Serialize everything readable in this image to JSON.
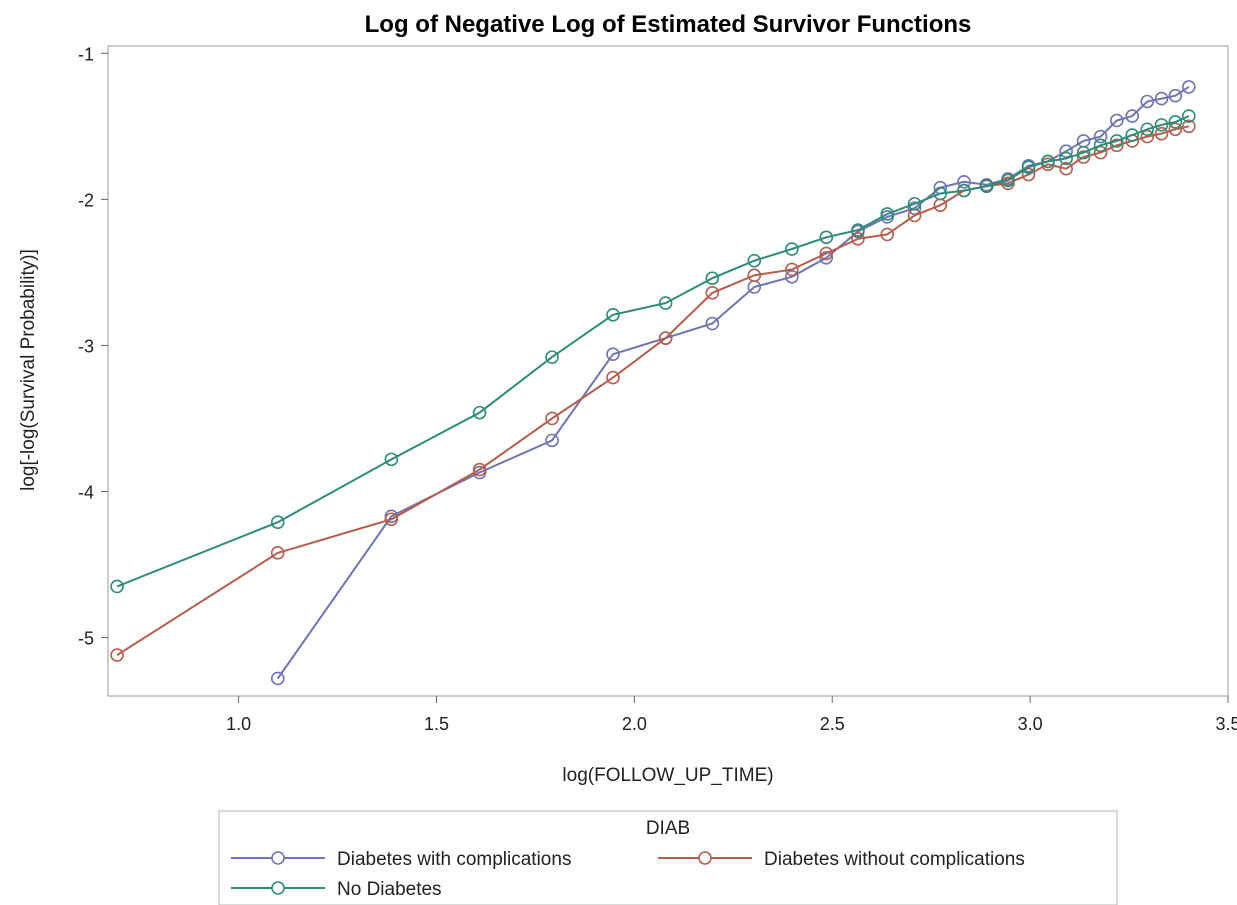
{
  "chart_data": {
    "type": "line",
    "title": "Log of Negative Log of Estimated Survivor Functions",
    "xlabel": "log(FOLLOW_UP_TIME)",
    "ylabel": "log[-log(Survival Probability)]",
    "xlim": [
      0.67,
      3.5
    ],
    "ylim": [
      -5.4,
      -0.95
    ],
    "x_ticks": [
      1.0,
      1.5,
      2.0,
      2.5,
      3.0,
      3.5
    ],
    "x_tick_labels": [
      "1.0",
      "1.5",
      "2.0",
      "2.5",
      "3.0",
      "3.5"
    ],
    "y_ticks": [
      -1,
      -2,
      -3,
      -4,
      -5
    ],
    "y_tick_labels": [
      "-1",
      "-2",
      "-3",
      "-4",
      "-5"
    ],
    "grid": false,
    "marker": "open-circle",
    "legend": {
      "title": "DIAB",
      "placement": "bottom"
    },
    "series": [
      {
        "name": "Diabetes with complications",
        "color": "#6f74b3",
        "points": [
          [
            1.099,
            -5.28
          ],
          [
            1.386,
            -4.17
          ],
          [
            1.609,
            -3.87
          ],
          [
            1.792,
            -3.65
          ],
          [
            1.946,
            -3.06
          ],
          [
            2.079,
            -2.95
          ],
          [
            2.197,
            -2.85
          ],
          [
            2.303,
            -2.6
          ],
          [
            2.398,
            -2.53
          ],
          [
            2.485,
            -2.4
          ],
          [
            2.565,
            -2.22
          ],
          [
            2.639,
            -2.12
          ],
          [
            2.708,
            -2.06
          ],
          [
            2.773,
            -1.92
          ],
          [
            2.833,
            -1.88
          ],
          [
            2.89,
            -1.9
          ],
          [
            2.944,
            -1.86
          ],
          [
            2.996,
            -1.77
          ],
          [
            3.045,
            -1.74
          ],
          [
            3.091,
            -1.67
          ],
          [
            3.135,
            -1.6
          ],
          [
            3.178,
            -1.57
          ],
          [
            3.219,
            -1.46
          ],
          [
            3.258,
            -1.43
          ],
          [
            3.296,
            -1.33
          ],
          [
            3.332,
            -1.31
          ],
          [
            3.367,
            -1.29
          ],
          [
            3.401,
            -1.23
          ]
        ]
      },
      {
        "name": "Diabetes without complications",
        "color": "#b65e4e",
        "points": [
          [
            0.693,
            -5.12
          ],
          [
            1.099,
            -4.42
          ],
          [
            1.386,
            -4.19
          ],
          [
            1.609,
            -3.85
          ],
          [
            1.792,
            -3.5
          ],
          [
            1.946,
            -3.22
          ],
          [
            2.079,
            -2.95
          ],
          [
            2.197,
            -2.64
          ],
          [
            2.303,
            -2.52
          ],
          [
            2.398,
            -2.48
          ],
          [
            2.485,
            -2.37
          ],
          [
            2.565,
            -2.27
          ],
          [
            2.639,
            -2.24
          ],
          [
            2.708,
            -2.11
          ],
          [
            2.773,
            -2.04
          ],
          [
            2.833,
            -1.94
          ],
          [
            2.89,
            -1.91
          ],
          [
            2.944,
            -1.89
          ],
          [
            2.996,
            -1.83
          ],
          [
            3.045,
            -1.76
          ],
          [
            3.091,
            -1.79
          ],
          [
            3.135,
            -1.71
          ],
          [
            3.178,
            -1.68
          ],
          [
            3.219,
            -1.63
          ],
          [
            3.258,
            -1.6
          ],
          [
            3.296,
            -1.57
          ],
          [
            3.332,
            -1.55
          ],
          [
            3.367,
            -1.52
          ],
          [
            3.401,
            -1.5
          ]
        ]
      },
      {
        "name": "No Diabetes",
        "color": "#2e8c79",
        "points": [
          [
            0.693,
            -4.65
          ],
          [
            1.099,
            -4.21
          ],
          [
            1.386,
            -3.78
          ],
          [
            1.609,
            -3.46
          ],
          [
            1.792,
            -3.08
          ],
          [
            1.946,
            -2.79
          ],
          [
            2.079,
            -2.71
          ],
          [
            2.197,
            -2.54
          ],
          [
            2.303,
            -2.42
          ],
          [
            2.398,
            -2.34
          ],
          [
            2.485,
            -2.26
          ],
          [
            2.565,
            -2.21
          ],
          [
            2.639,
            -2.1
          ],
          [
            2.708,
            -2.03
          ],
          [
            2.773,
            -1.96
          ],
          [
            2.833,
            -1.94
          ],
          [
            2.89,
            -1.91
          ],
          [
            2.944,
            -1.87
          ],
          [
            2.996,
            -1.78
          ],
          [
            3.045,
            -1.74
          ],
          [
            3.091,
            -1.72
          ],
          [
            3.135,
            -1.68
          ],
          [
            3.178,
            -1.63
          ],
          [
            3.219,
            -1.6
          ],
          [
            3.258,
            -1.56
          ],
          [
            3.296,
            -1.52
          ],
          [
            3.332,
            -1.49
          ],
          [
            3.367,
            -1.47
          ],
          [
            3.401,
            -1.43
          ]
        ]
      }
    ]
  }
}
